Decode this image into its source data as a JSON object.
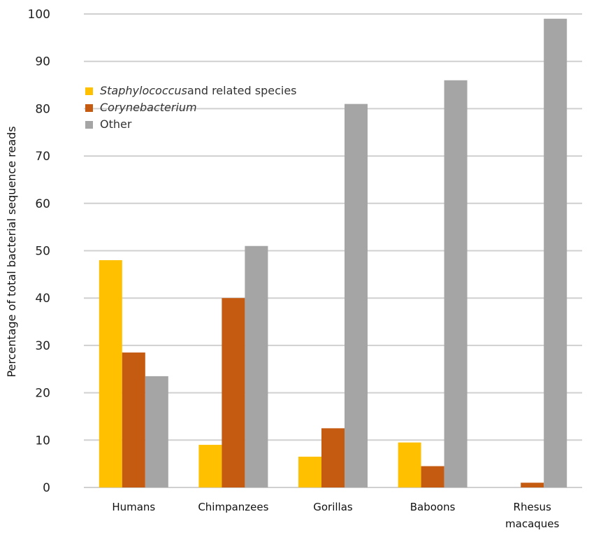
{
  "chart_data": {
    "type": "bar",
    "title": "",
    "xlabel": "",
    "ylabel": "Percentage of total bacterial sequence reads",
    "ylim": [
      0,
      100
    ],
    "yticks": [
      0,
      10,
      20,
      30,
      40,
      50,
      60,
      70,
      80,
      90,
      100
    ],
    "grid": true,
    "legend_position": "top-left",
    "categories": [
      [
        "Humans"
      ],
      [
        "Chimpanzees"
      ],
      [
        "Gorillas"
      ],
      [
        "Baboons"
      ],
      [
        "Rhesus",
        "macaques"
      ]
    ],
    "series": [
      {
        "name": "Staphylococcus",
        "name_suffix": "and related species",
        "italic_part": "Staphylococcus",
        "color": "#FFC000",
        "values": [
          48,
          9,
          6.5,
          9.5,
          0
        ]
      },
      {
        "name": "Corynebacterium",
        "name_suffix": "",
        "italic_part": "Corynebacterium",
        "color": "#C55A11",
        "values": [
          28.5,
          40,
          12.5,
          4.5,
          1
        ]
      },
      {
        "name": "Other",
        "name_suffix": "",
        "italic_part": "",
        "color": "#A5A5A5",
        "values": [
          23.5,
          51,
          81,
          86,
          99
        ]
      }
    ]
  }
}
